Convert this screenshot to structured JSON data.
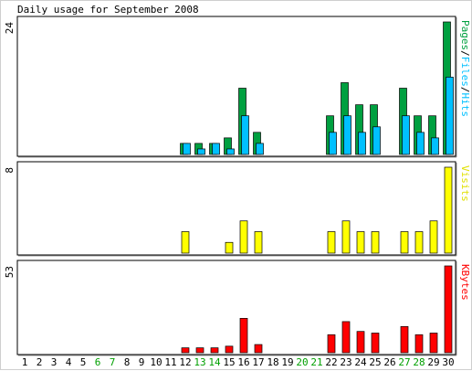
{
  "chart_data": {
    "type": "bar",
    "title": "Daily usage for September 2008",
    "categories": [
      "1",
      "2",
      "3",
      "4",
      "5",
      "6",
      "7",
      "8",
      "9",
      "10",
      "11",
      "12",
      "13",
      "14",
      "15",
      "16",
      "17",
      "18",
      "19",
      "20",
      "21",
      "22",
      "23",
      "24",
      "25",
      "26",
      "27",
      "28",
      "29",
      "30"
    ],
    "weekend_days": [
      "6",
      "7",
      "13",
      "14",
      "20",
      "21",
      "27",
      "28"
    ],
    "colors": {
      "pages": "#00a040",
      "files": "#00c0ff",
      "hits": "#00c0ff",
      "visits": "#ffff00",
      "kbytes": "#ff0000",
      "weekday_label": "#000000",
      "weekend_label": "#00a000",
      "panel_border": "#000000"
    },
    "panels": [
      {
        "id": "hits",
        "max_label": "24",
        "ylim": [
          0,
          24
        ],
        "legend_parts": [
          {
            "text": "Pages",
            "color": "#00a040"
          },
          {
            "text": "/",
            "color": "#000000"
          },
          {
            "text": "Files",
            "color": "#00c0ff"
          },
          {
            "text": "/",
            "color": "#000000"
          },
          {
            "text": "Hits",
            "color": "#00c0ff"
          }
        ],
        "series": [
          {
            "name": "Pages",
            "color": "#00a040",
            "values": [
              0,
              0,
              0,
              0,
              0,
              0,
              0,
              0,
              0,
              0,
              0,
              2,
              2,
              2,
              3,
              12,
              4,
              0,
              0,
              0,
              0,
              7,
              13,
              9,
              9,
              0,
              12,
              7,
              7,
              24
            ]
          },
          {
            "name": "Files",
            "color": "#00c0ff",
            "values": [
              0,
              0,
              0,
              0,
              0,
              0,
              0,
              0,
              0,
              0,
              0,
              2,
              1,
              2,
              1,
              7,
              2,
              0,
              0,
              0,
              0,
              4,
              7,
              4,
              5,
              0,
              7,
              4,
              3,
              14
            ]
          },
          {
            "name": "Hits",
            "color": "#00c0ff",
            "values": [
              0,
              0,
              0,
              0,
              0,
              0,
              0,
              0,
              0,
              0,
              0,
              2,
              1,
              2,
              1,
              7,
              2,
              0,
              0,
              0,
              0,
              4,
              7,
              4,
              5,
              0,
              7,
              4,
              3,
              14
            ]
          }
        ]
      },
      {
        "id": "visits",
        "max_label": "8",
        "ylim": [
          0,
          8
        ],
        "legend_parts": [
          {
            "text": "Visits",
            "color": "#e0e000"
          }
        ],
        "series": [
          {
            "name": "Visits",
            "color": "#ffff00",
            "values": [
              0,
              0,
              0,
              0,
              0,
              0,
              0,
              0,
              0,
              0,
              0,
              2,
              0,
              0,
              1,
              3,
              2,
              0,
              0,
              0,
              0,
              2,
              3,
              2,
              2,
              0,
              2,
              2,
              3,
              8
            ]
          }
        ]
      },
      {
        "id": "kbytes",
        "max_label": "53",
        "ylim": [
          0,
          53
        ],
        "legend_parts": [
          {
            "text": "KBytes",
            "color": "#ff0000"
          }
        ],
        "series": [
          {
            "name": "KBytes",
            "color": "#ff0000",
            "values": [
              0,
              0,
              0,
              0,
              0,
              0,
              0,
              0,
              0,
              0,
              0,
              3,
              3,
              3,
              4,
              21,
              5,
              0,
              0,
              0,
              0,
              11,
              19,
              13,
              12,
              0,
              16,
              11,
              12,
              53
            ]
          }
        ]
      }
    ]
  }
}
